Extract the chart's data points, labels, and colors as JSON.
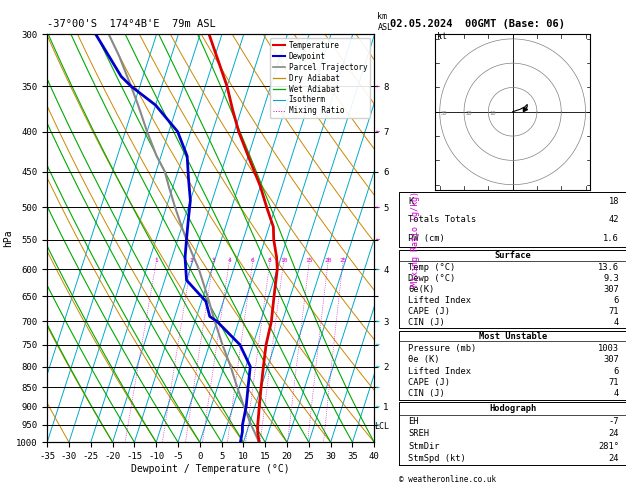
{
  "title_left": "-37°00'S  174°4B'E  79m ASL",
  "title_right": "02.05.2024  00GMT (Base: 06)",
  "xlabel": "Dewpoint / Temperature (°C)",
  "ylabel_left": "hPa",
  "pressure_ticks": [
    300,
    350,
    400,
    450,
    500,
    550,
    600,
    650,
    700,
    750,
    800,
    850,
    900,
    950,
    1000
  ],
  "t_xlim_min": -35,
  "t_xlim_max": 40,
  "p_min": 300,
  "p_max": 1000,
  "skew_factor": 25,
  "temp_profile_p": [
    300,
    350,
    375,
    400,
    430,
    470,
    500,
    530,
    550,
    580,
    600,
    640,
    680,
    700,
    750,
    800,
    850,
    900,
    950,
    970,
    1000
  ],
  "temp_profile_t": [
    -28,
    -20,
    -17,
    -14,
    -10,
    -5,
    -2,
    1,
    2,
    4,
    5,
    6,
    7,
    7.5,
    8,
    9,
    10,
    11,
    12,
    12.5,
    13.6
  ],
  "dewp_profile_p": [
    300,
    340,
    350,
    370,
    400,
    430,
    460,
    490,
    520,
    550,
    580,
    620,
    660,
    690,
    700,
    750,
    800,
    850,
    900,
    950,
    970,
    1000
  ],
  "dewp_profile_t": [
    -54,
    -45,
    -42,
    -35,
    -28,
    -24,
    -22,
    -20,
    -19,
    -18,
    -17,
    -15,
    -9,
    -7,
    -5,
    2,
    6,
    7,
    8,
    8.5,
    9,
    9.3
  ],
  "parcel_profile_p": [
    1000,
    950,
    900,
    850,
    800,
    750,
    700,
    650,
    600,
    570,
    550,
    530,
    500,
    470,
    450,
    430,
    400,
    370,
    350,
    320,
    300
  ],
  "parcel_profile_t": [
    13.6,
    10.5,
    7.5,
    4.5,
    1.5,
    -2,
    -5.5,
    -9,
    -13,
    -16,
    -18,
    -20,
    -23,
    -26,
    -28,
    -31,
    -35,
    -39,
    -42,
    -47,
    -51
  ],
  "isotherms_t": [
    -40,
    -35,
    -30,
    -25,
    -20,
    -15,
    -10,
    -5,
    0,
    5,
    10,
    15,
    20,
    25,
    30,
    35,
    40,
    45
  ],
  "dry_adiabats_t0": [
    -40,
    -30,
    -20,
    -10,
    0,
    10,
    20,
    30,
    40,
    50,
    60,
    70,
    80,
    90,
    100,
    110,
    120
  ],
  "wet_adiabats_t0": [
    -20,
    -15,
    -10,
    -5,
    0,
    5,
    10,
    15,
    20,
    25,
    30,
    35,
    40
  ],
  "mixing_ratio_values": [
    1,
    2,
    3,
    4,
    6,
    8,
    10,
    15,
    20,
    25
  ],
  "lcl_p": 955,
  "km_p": [
    350,
    400,
    450,
    500,
    550,
    600,
    650,
    700,
    750,
    800,
    850,
    900,
    950
  ],
  "km_labels": [
    "8",
    "7",
    "6",
    "5",
    "",
    "4",
    "",
    "3",
    "",
    "2",
    "",
    "1",
    ""
  ],
  "lcl_label_p": 957,
  "wind_barb_p": [
    350,
    400,
    500,
    550,
    600,
    700,
    750,
    800,
    850,
    900,
    950
  ],
  "wind_colors": [
    "#cc00cc",
    "#cc00cc",
    "#cc00cc",
    "#cc00cc",
    "#00cccc",
    "#00cccc",
    "#00cccc",
    "#00cccc",
    "#00cccc",
    "#00cccc",
    "#00cccc"
  ],
  "color_temp": "#dd0000",
  "color_dewp": "#0000cc",
  "color_parcel": "#888888",
  "color_dry": "#cc8800",
  "color_wet": "#00aa00",
  "color_iso": "#00aacc",
  "color_mix": "#cc00cc",
  "info_K": "18",
  "info_TT": "42",
  "info_PW": "1.6",
  "surf_temp": "13.6",
  "surf_dewp": "9.3",
  "surf_theta": "307",
  "surf_LI": "6",
  "surf_CAPE": "71",
  "surf_CIN": "4",
  "mu_pres": "1003",
  "mu_theta": "307",
  "mu_LI": "6",
  "mu_CAPE": "71",
  "mu_CIN": "4",
  "hodo_EH": "-7",
  "hodo_SREH": "24",
  "hodo_StmDir": "281°",
  "hodo_StmSpd": "24"
}
